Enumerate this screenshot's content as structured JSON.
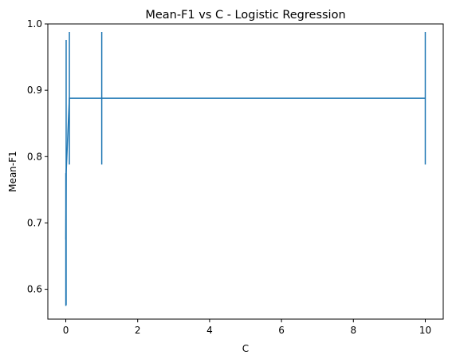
{
  "chart_data": {
    "type": "line",
    "title": "Mean-F1 vs C - Logistic Regression",
    "xlabel": "C",
    "ylabel": "Mean-F1",
    "xlim": [
      -0.4995,
      10.4995
    ],
    "ylim": [
      0.555,
      1.0
    ],
    "xticks": [
      0,
      2,
      4,
      6,
      8,
      10
    ],
    "yticks": [
      0.6,
      0.7,
      0.8,
      0.9,
      1.0
    ],
    "ytick_labels": [
      "0.6",
      "0.7",
      "0.8",
      "0.9",
      "1.0"
    ],
    "grid": false,
    "color": "#1f77b4",
    "series": [
      {
        "x": [
          0.001,
          0.01,
          0.1,
          1,
          10
        ],
        "y": [
          0.675,
          0.776,
          0.888,
          0.888,
          0.888
        ],
        "yerr": [
          0.1,
          0.2,
          0.1,
          0.1,
          0.1
        ]
      }
    ]
  }
}
